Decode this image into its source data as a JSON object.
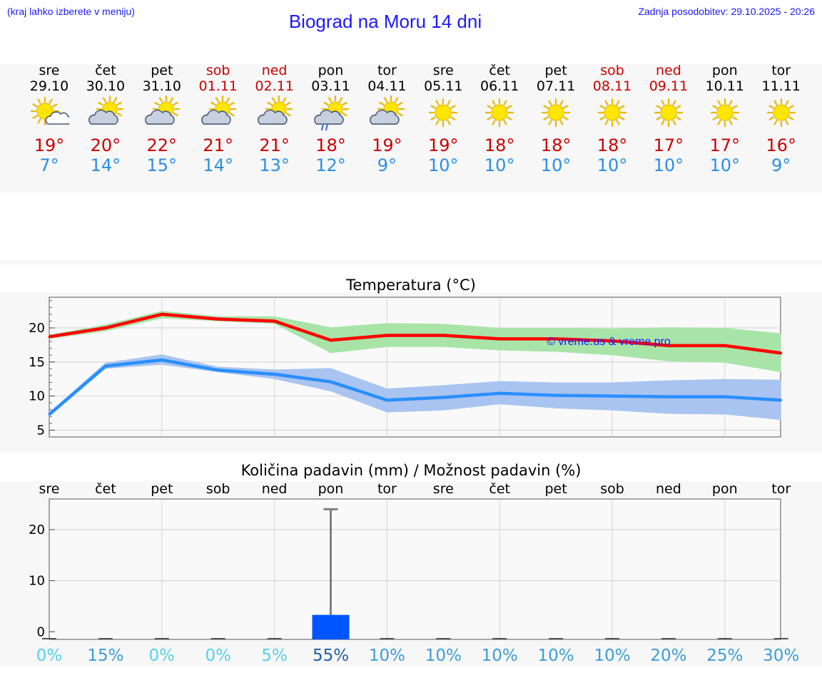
{
  "header": {
    "menu_hint": "(kraj lahko izberete v meniju)",
    "title": "Biograd na Moru 14 dni",
    "updated": "Zadnja posodobitev: 29.10.2025 - 20:26"
  },
  "colors": {
    "max": "#cc0000",
    "min": "#2a8fe6",
    "weekend": "#cc0000",
    "link": "#1a1aff"
  },
  "days": [
    {
      "name": "sre",
      "date": "29.10",
      "weekend": false,
      "icon": "sun-cloud-icon",
      "max": "19°",
      "min": "7°"
    },
    {
      "name": "čet",
      "date": "30.10",
      "weekend": false,
      "icon": "cloud-sun-icon",
      "max": "20°",
      "min": "14°"
    },
    {
      "name": "pet",
      "date": "31.10",
      "weekend": false,
      "icon": "cloud-sun-icon",
      "max": "22°",
      "min": "15°"
    },
    {
      "name": "sob",
      "date": "01.11",
      "weekend": true,
      "icon": "cloud-sun-icon",
      "max": "21°",
      "min": "14°"
    },
    {
      "name": "ned",
      "date": "02.11",
      "weekend": true,
      "icon": "cloud-sun-icon",
      "max": "21°",
      "min": "13°"
    },
    {
      "name": "pon",
      "date": "03.11",
      "weekend": false,
      "icon": "cloud-sun-rain-icon",
      "max": "18°",
      "min": "12°"
    },
    {
      "name": "tor",
      "date": "04.11",
      "weekend": false,
      "icon": "cloud-sun-icon",
      "max": "19°",
      "min": "9°"
    },
    {
      "name": "sre",
      "date": "05.11",
      "weekend": false,
      "icon": "sun-icon",
      "max": "19°",
      "min": "10°"
    },
    {
      "name": "čet",
      "date": "06.11",
      "weekend": false,
      "icon": "sun-icon",
      "max": "18°",
      "min": "10°"
    },
    {
      "name": "pet",
      "date": "07.11",
      "weekend": false,
      "icon": "sun-icon",
      "max": "18°",
      "min": "10°"
    },
    {
      "name": "sob",
      "date": "08.11",
      "weekend": true,
      "icon": "sun-icon",
      "max": "18°",
      "min": "10°"
    },
    {
      "name": "ned",
      "date": "09.11",
      "weekend": true,
      "icon": "sun-icon",
      "max": "17°",
      "min": "10°"
    },
    {
      "name": "pon",
      "date": "10.11",
      "weekend": false,
      "icon": "sun-icon",
      "max": "17°",
      "min": "10°"
    },
    {
      "name": "tor",
      "date": "11.11",
      "weekend": false,
      "icon": "sun-icon",
      "max": "16°",
      "min": "9°"
    }
  ],
  "chart_data": [
    {
      "type": "line",
      "title": "Temperatura (°C)",
      "watermark": "© vreme.us & vreme.pro",
      "ylim": [
        4,
        24.5
      ],
      "yticks": [
        5,
        10,
        15,
        20
      ],
      "x": [
        0,
        1,
        2,
        3,
        4,
        5,
        6,
        7,
        8,
        9,
        10,
        11,
        12,
        13
      ],
      "series": [
        {
          "name": "max",
          "color": "#ff0000",
          "band_color": "#a8e4a8",
          "values": [
            18.7,
            20.0,
            22.0,
            21.3,
            21.0,
            18.2,
            18.9,
            18.9,
            18.4,
            18.4,
            18.1,
            17.4,
            17.4,
            16.3
          ],
          "band_low": [
            18.4,
            19.5,
            21.4,
            21.0,
            20.6,
            16.3,
            17.2,
            17.2,
            16.7,
            16.5,
            16.0,
            15.1,
            14.9,
            13.5
          ],
          "band_high": [
            19.0,
            20.5,
            22.5,
            21.7,
            21.7,
            20.1,
            20.7,
            20.6,
            20.0,
            20.0,
            19.9,
            20.1,
            20.0,
            19.2
          ]
        },
        {
          "name": "min",
          "color": "#2a8fff",
          "band_color": "#a9c4f0",
          "values": [
            7.3,
            14.4,
            15.3,
            13.8,
            13.2,
            12.1,
            9.4,
            9.8,
            10.4,
            10.1,
            10.0,
            9.9,
            9.9,
            9.4
          ],
          "band_low": [
            7.0,
            14.0,
            14.6,
            13.5,
            12.5,
            10.7,
            7.6,
            7.9,
            8.8,
            8.2,
            7.9,
            7.4,
            7.3,
            6.5
          ],
          "band_high": [
            7.6,
            14.9,
            16.1,
            14.3,
            13.9,
            14.1,
            11.1,
            11.6,
            12.2,
            12.0,
            12.0,
            12.3,
            12.5,
            12.4
          ]
        }
      ]
    },
    {
      "type": "bar",
      "title": "Količina padavin (mm) / Možnost padavin (%)",
      "categories": [
        "sre",
        "čet",
        "pet",
        "sob",
        "ned",
        "pon",
        "tor",
        "sre",
        "čet",
        "pet",
        "sob",
        "ned",
        "pon",
        "tor"
      ],
      "ylim": [
        -1.5,
        26
      ],
      "yticks": [
        0,
        10,
        20
      ],
      "values": [
        0,
        0,
        0,
        0,
        0,
        3.3,
        0,
        0,
        0,
        0,
        0,
        0,
        0,
        0
      ],
      "error_high": [
        null,
        null,
        null,
        null,
        null,
        24,
        null,
        null,
        null,
        null,
        null,
        null,
        null,
        null
      ],
      "probabilities": [
        "0%",
        "15%",
        "0%",
        "0%",
        "5%",
        "55%",
        "10%",
        "10%",
        "10%",
        "10%",
        "10%",
        "20%",
        "25%",
        "30%"
      ],
      "probability_values": [
        0,
        15,
        0,
        0,
        5,
        55,
        10,
        10,
        10,
        10,
        10,
        20,
        25,
        30
      ],
      "bar_color": "#0055ff"
    }
  ]
}
